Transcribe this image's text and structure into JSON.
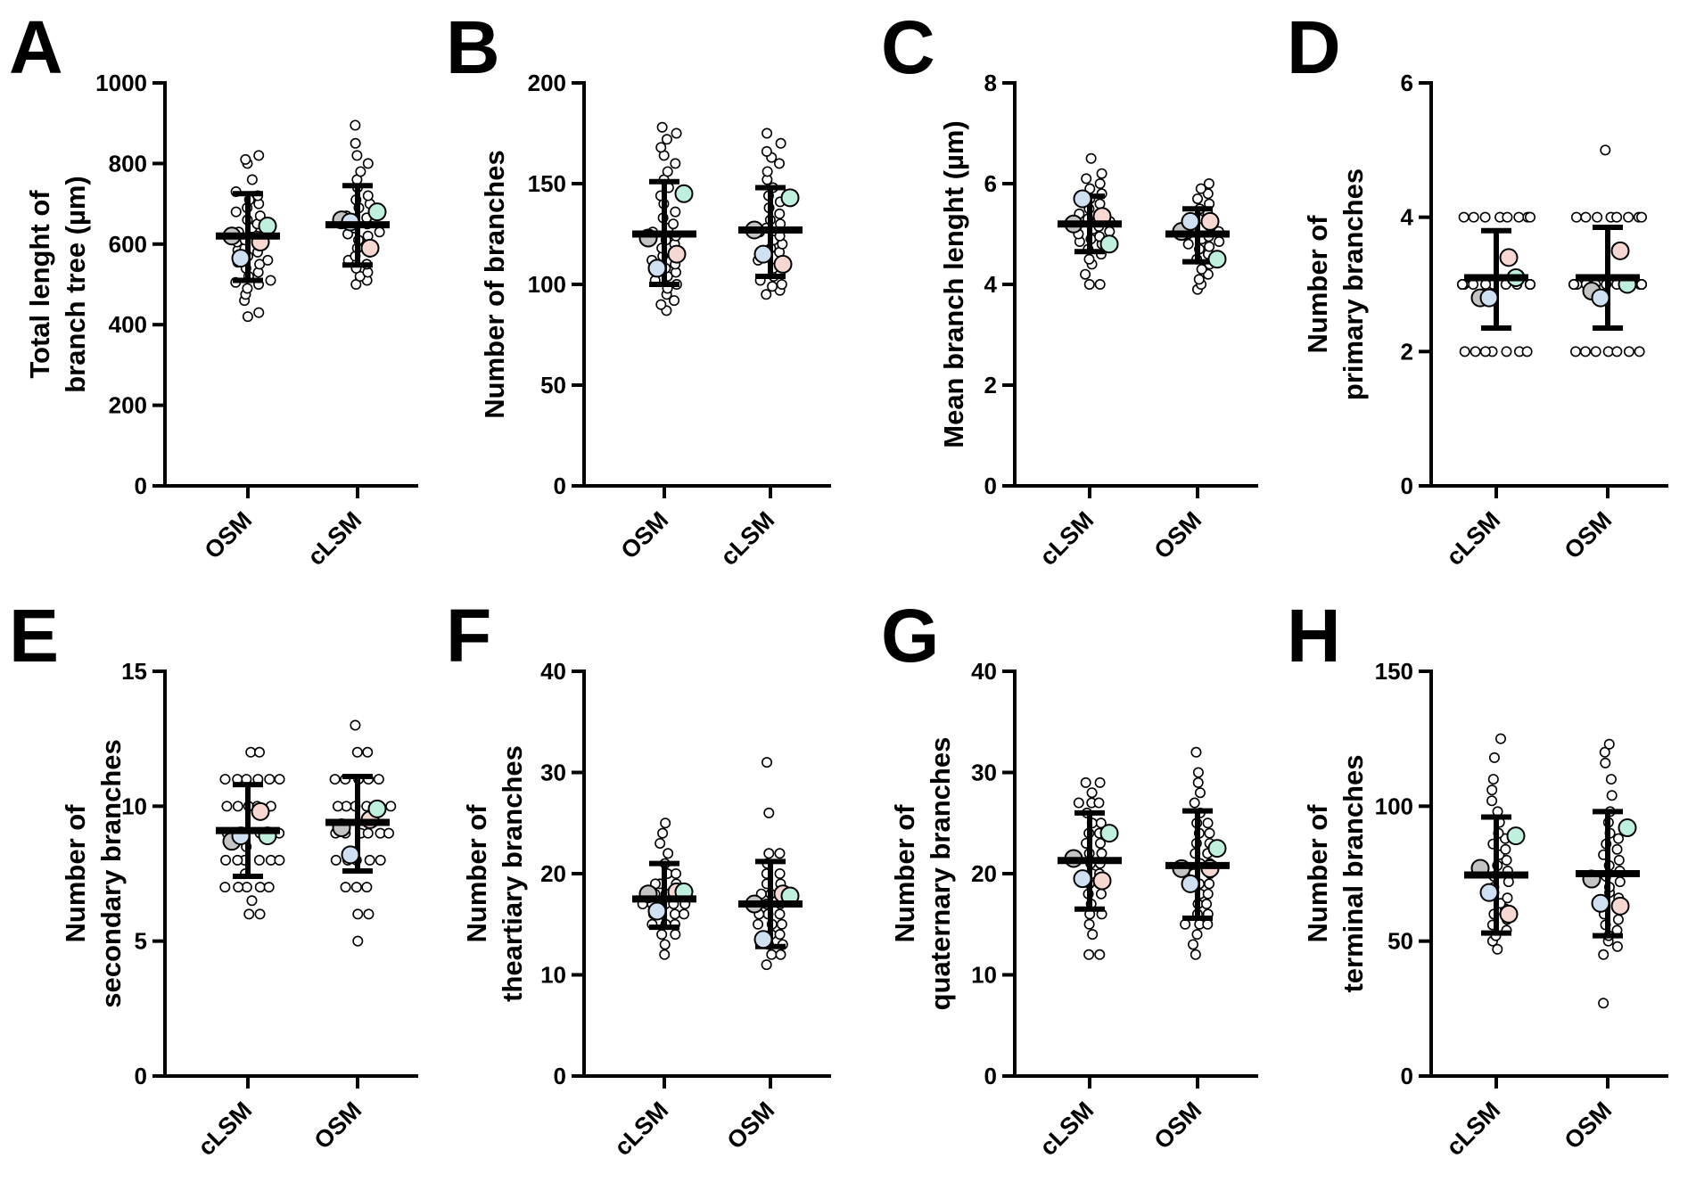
{
  "figure": {
    "marker_colors": [
      "#c4c4c4",
      "#cfe0f3",
      "#f7d7d2",
      "#bff0dd"
    ],
    "line_color": "#000000",
    "background": "#ffffff"
  },
  "chart_data": [
    {
      "panel": "A",
      "type": "scatter",
      "ylabel_lines": [
        "Total lenght of",
        "branch tree (µm)"
      ],
      "ylim": [
        0,
        1000
      ],
      "yticks": [
        0,
        200,
        400,
        600,
        800,
        1000
      ],
      "categories": [
        "OSM",
        "cLSM"
      ],
      "groups": [
        {
          "name": "OSM",
          "mean": 620,
          "sd_low": 510,
          "sd_high": 725,
          "replicate_means": [
            620,
            565,
            605,
            645
          ],
          "points": [
            420,
            430,
            460,
            475,
            490,
            500,
            505,
            510,
            520,
            530,
            540,
            550,
            555,
            560,
            570,
            580,
            585,
            590,
            600,
            605,
            610,
            620,
            630,
            640,
            650,
            660,
            670,
            680,
            690,
            700,
            710,
            720,
            730,
            760,
            800,
            810,
            820
          ]
        },
        {
          "name": "cLSM",
          "mean": 648,
          "sd_low": 548,
          "sd_high": 745,
          "replicate_means": [
            660,
            655,
            590,
            680
          ],
          "points": [
            500,
            510,
            520,
            530,
            540,
            550,
            560,
            570,
            580,
            590,
            600,
            610,
            620,
            625,
            630,
            640,
            650,
            655,
            660,
            665,
            670,
            680,
            690,
            700,
            710,
            720,
            740,
            760,
            780,
            800,
            820,
            850,
            895
          ]
        }
      ]
    },
    {
      "panel": "B",
      "type": "scatter",
      "ylabel_lines": [
        "Number of branches"
      ],
      "ylim": [
        0,
        200
      ],
      "yticks": [
        0,
        50,
        100,
        150,
        200
      ],
      "categories": [
        "OSM",
        "cLSM"
      ],
      "groups": [
        {
          "name": "OSM",
          "mean": 125,
          "sd_low": 100,
          "sd_high": 151,
          "replicate_means": [
            123,
            108,
            115,
            145
          ],
          "points": [
            87,
            90,
            92,
            95,
            98,
            100,
            102,
            104,
            106,
            108,
            110,
            112,
            114,
            116,
            118,
            120,
            122,
            124,
            126,
            128,
            130,
            133,
            136,
            140,
            144,
            148,
            152,
            156,
            160,
            164,
            168,
            172,
            175,
            178
          ]
        },
        {
          "name": "cLSM",
          "mean": 127,
          "sd_low": 104,
          "sd_high": 148,
          "replicate_means": [
            127,
            115,
            110,
            143
          ],
          "points": [
            95,
            97,
            99,
            100,
            102,
            104,
            106,
            108,
            110,
            112,
            114,
            116,
            118,
            120,
            122,
            124,
            126,
            128,
            130,
            132,
            135,
            138,
            141,
            144,
            148,
            152,
            156,
            160,
            163,
            166,
            170,
            175
          ]
        }
      ]
    },
    {
      "panel": "C",
      "type": "scatter",
      "ylabel_lines": [
        "Mean branch lenght (µm)"
      ],
      "ylim": [
        0,
        8
      ],
      "yticks": [
        0,
        2,
        4,
        6,
        8
      ],
      "categories": [
        "cLSM",
        "OSM"
      ],
      "groups": [
        {
          "name": "cLSM",
          "mean": 5.2,
          "sd_low": 4.65,
          "sd_high": 5.75,
          "replicate_means": [
            5.2,
            5.7,
            5.35,
            4.8
          ],
          "points": [
            4.0,
            4.0,
            4.2,
            4.4,
            4.5,
            4.6,
            4.7,
            4.8,
            4.85,
            4.9,
            4.95,
            5.0,
            5.05,
            5.1,
            5.15,
            5.2,
            5.25,
            5.3,
            5.35,
            5.4,
            5.5,
            5.6,
            5.7,
            5.8,
            5.9,
            6.0,
            6.1,
            6.2,
            6.5
          ]
        },
        {
          "name": "OSM",
          "mean": 5.0,
          "sd_low": 4.45,
          "sd_high": 5.5,
          "replicate_means": [
            5.05,
            5.25,
            5.25,
            4.5
          ],
          "points": [
            3.9,
            4.0,
            4.1,
            4.2,
            4.3,
            4.4,
            4.5,
            4.6,
            4.7,
            4.75,
            4.8,
            4.85,
            4.9,
            4.95,
            5.0,
            5.05,
            5.1,
            5.15,
            5.2,
            5.3,
            5.4,
            5.5,
            5.6,
            5.7,
            5.8,
            5.9,
            6.0
          ]
        }
      ]
    },
    {
      "panel": "D",
      "type": "scatter",
      "ylabel_lines": [
        "Number of",
        "primary branches"
      ],
      "ylim": [
        0,
        6
      ],
      "yticks": [
        0,
        2,
        4,
        6
      ],
      "categories": [
        "cLSM",
        "OSM"
      ],
      "groups": [
        {
          "name": "cLSM",
          "mean": 3.1,
          "sd_low": 2.35,
          "sd_high": 3.8,
          "replicate_means": [
            2.8,
            2.8,
            3.4,
            3.1
          ],
          "points": [
            2,
            2,
            2,
            2,
            2,
            2,
            2,
            3,
            3,
            3,
            3,
            3,
            3,
            3,
            3,
            3,
            3,
            3,
            3,
            3,
            3,
            4,
            4,
            4,
            4,
            4,
            4,
            4,
            4
          ]
        },
        {
          "name": "OSM",
          "mean": 3.1,
          "sd_low": 2.35,
          "sd_high": 3.85,
          "replicate_means": [
            2.9,
            2.8,
            3.5,
            3.0
          ],
          "points": [
            2,
            2,
            2,
            2,
            2,
            2,
            2,
            3,
            3,
            3,
            3,
            3,
            3,
            3,
            3,
            3,
            3,
            3,
            3,
            3,
            3,
            4,
            4,
            4,
            4,
            4,
            4,
            4,
            4,
            5
          ]
        }
      ]
    },
    {
      "panel": "E",
      "type": "scatter",
      "ylabel_lines": [
        "Number of",
        "secondary branches"
      ],
      "ylim": [
        0,
        15
      ],
      "yticks": [
        0,
        5,
        10,
        15
      ],
      "categories": [
        "cLSM",
        "OSM"
      ],
      "groups": [
        {
          "name": "cLSM",
          "mean": 9.1,
          "sd_low": 7.4,
          "sd_high": 10.8,
          "replicate_means": [
            8.7,
            8.9,
            9.8,
            8.9
          ],
          "points": [
            6,
            6,
            6.5,
            7,
            7,
            7,
            7,
            7,
            7.5,
            8,
            8,
            8,
            8,
            8,
            8,
            8.5,
            9,
            9,
            9,
            9,
            9,
            9,
            10,
            10,
            10,
            10,
            10,
            11,
            11,
            11,
            11,
            11,
            11,
            12,
            12
          ]
        },
        {
          "name": "OSM",
          "mean": 9.4,
          "sd_low": 7.6,
          "sd_high": 11.1,
          "replicate_means": [
            9.2,
            8.2,
            9.5,
            9.9
          ],
          "points": [
            5,
            6,
            6,
            7,
            7,
            7,
            8,
            8,
            8,
            8,
            8,
            9,
            9,
            9,
            9,
            9,
            9,
            10,
            10,
            10,
            10,
            10,
            10,
            11,
            11,
            11,
            11,
            11,
            12,
            12,
            13
          ]
        }
      ]
    },
    {
      "panel": "F",
      "type": "scatter",
      "ylabel_lines": [
        "Number of",
        "theartiary branches"
      ],
      "ylim": [
        0,
        40
      ],
      "yticks": [
        0,
        10,
        20,
        30,
        40
      ],
      "categories": [
        "cLSM",
        "OSM"
      ],
      "groups": [
        {
          "name": "cLSM",
          "mean": 17.5,
          "sd_low": 14.7,
          "sd_high": 21.0,
          "replicate_means": [
            18.0,
            16.3,
            18.2,
            18.2
          ],
          "points": [
            12,
            13,
            14,
            14,
            15,
            15,
            15,
            16,
            16,
            16,
            16,
            17,
            17,
            17,
            17,
            17,
            18,
            18,
            18,
            18,
            19,
            19,
            19,
            20,
            20,
            21,
            22,
            23,
            24,
            25
          ]
        },
        {
          "name": "OSM",
          "mean": 17.0,
          "sd_low": 12.8,
          "sd_high": 21.2,
          "replicate_means": [
            17.0,
            13.5,
            18.0,
            17.8
          ],
          "points": [
            11,
            12,
            12,
            13,
            13,
            14,
            14,
            15,
            15,
            15,
            16,
            16,
            16,
            17,
            17,
            17,
            18,
            18,
            18,
            19,
            19,
            20,
            20,
            21,
            22,
            22,
            26,
            31
          ]
        }
      ]
    },
    {
      "panel": "G",
      "type": "scatter",
      "ylabel_lines": [
        "Number of",
        "quaternary branches"
      ],
      "ylim": [
        0,
        40
      ],
      "yticks": [
        0,
        10,
        20,
        30,
        40
      ],
      "categories": [
        "cLSM",
        "OSM"
      ],
      "groups": [
        {
          "name": "cLSM",
          "mean": 21.3,
          "sd_low": 16.5,
          "sd_high": 26.0,
          "replicate_means": [
            21.5,
            19.5,
            19.3,
            24.0
          ],
          "points": [
            12,
            12,
            14,
            15,
            16,
            16,
            17,
            18,
            18,
            19,
            19,
            20,
            20,
            21,
            21,
            22,
            22,
            23,
            23,
            24,
            24,
            25,
            25,
            26,
            27,
            27,
            27,
            28,
            29,
            29
          ]
        },
        {
          "name": "OSM",
          "mean": 20.8,
          "sd_low": 15.6,
          "sd_high": 26.2,
          "replicate_means": [
            20.5,
            19.0,
            20.5,
            22.5
          ],
          "points": [
            12,
            13,
            14,
            15,
            15,
            15,
            16,
            16,
            17,
            17,
            18,
            18,
            19,
            19,
            20,
            20,
            21,
            21,
            22,
            22,
            23,
            23,
            24,
            24,
            25,
            25,
            26,
            27,
            28,
            29,
            30,
            32
          ]
        }
      ]
    },
    {
      "panel": "H",
      "type": "scatter",
      "ylabel_lines": [
        "Number of",
        "terminal branches"
      ],
      "ylim": [
        0,
        150
      ],
      "yticks": [
        0,
        50,
        100,
        150
      ],
      "categories": [
        "cLSM",
        "OSM"
      ],
      "groups": [
        {
          "name": "cLSM",
          "mean": 74.5,
          "sd_low": 53,
          "sd_high": 96,
          "replicate_means": [
            77,
            68,
            60,
            89
          ],
          "points": [
            47,
            50,
            52,
            54,
            56,
            58,
            60,
            62,
            64,
            66,
            68,
            70,
            72,
            74,
            76,
            78,
            80,
            82,
            84,
            86,
            88,
            90,
            94,
            98,
            102,
            106,
            110,
            118,
            125
          ]
        },
        {
          "name": "OSM",
          "mean": 75,
          "sd_low": 52,
          "sd_high": 98,
          "replicate_means": [
            73,
            64,
            63,
            92
          ],
          "points": [
            27,
            45,
            48,
            50,
            52,
            54,
            56,
            58,
            60,
            62,
            64,
            66,
            68,
            70,
            72,
            74,
            76,
            78,
            80,
            82,
            84,
            86,
            88,
            90,
            94,
            98,
            104,
            110,
            116,
            120,
            123
          ]
        }
      ]
    }
  ]
}
